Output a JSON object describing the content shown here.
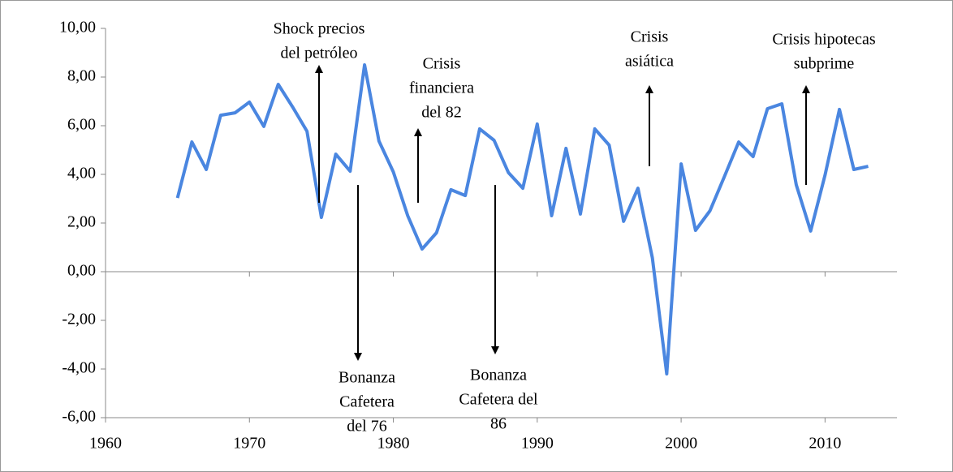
{
  "chart_data": {
    "type": "line",
    "x": [
      1965,
      1966,
      1967,
      1968,
      1969,
      1970,
      1971,
      1972,
      1973,
      1974,
      1975,
      1976,
      1977,
      1978,
      1979,
      1980,
      1981,
      1982,
      1983,
      1984,
      1985,
      1986,
      1987,
      1988,
      1989,
      1990,
      1991,
      1992,
      1993,
      1994,
      1995,
      1996,
      1997,
      1998,
      1999,
      2000,
      2001,
      2002,
      2003,
      2004,
      2005,
      2006,
      2007,
      2008,
      2009,
      2010,
      2011,
      2012,
      2013
    ],
    "values": [
      3.03,
      5.33,
      4.2,
      6.43,
      6.53,
      6.97,
      5.97,
      7.7,
      6.77,
      5.77,
      2.23,
      4.83,
      4.13,
      8.5,
      5.37,
      4.1,
      2.3,
      0.93,
      1.6,
      3.37,
      3.13,
      5.87,
      5.4,
      4.07,
      3.43,
      6.07,
      2.3,
      5.07,
      2.37,
      5.87,
      5.2,
      2.07,
      3.43,
      0.57,
      -4.2,
      4.43,
      1.7,
      2.5,
      3.9,
      5.33,
      4.73,
      6.7,
      6.9,
      3.57,
      1.67,
      3.97,
      6.67,
      4.2,
      4.33
    ],
    "color": "#4a86e0",
    "xlim": [
      1960,
      2015
    ],
    "xticks": [
      1960,
      1970,
      1980,
      1990,
      2000,
      2010
    ],
    "ylim": [
      -6,
      10
    ],
    "yticks": [
      {
        "value": -6,
        "label": "-6,00"
      },
      {
        "value": -4,
        "label": "-4,00"
      },
      {
        "value": -2,
        "label": "-2,00"
      },
      {
        "value": 0,
        "label": "0,00"
      },
      {
        "value": 2,
        "label": "2,00"
      },
      {
        "value": 4,
        "label": "4,00"
      },
      {
        "value": 6,
        "label": "6,00"
      },
      {
        "value": 8,
        "label": "8,00"
      },
      {
        "value": 10,
        "label": "10,00"
      }
    ],
    "annotations": [
      {
        "lines": [
          "Shock precios",
          "del petróleo"
        ]
      },
      {
        "lines": [
          "Crisis",
          "financiera",
          "del 82"
        ]
      },
      {
        "lines": [
          "Crisis",
          "asiática"
        ]
      },
      {
        "lines": [
          "Crisis hipotecas",
          "subprime"
        ]
      },
      {
        "lines": [
          "Bonanza",
          "Cafetera",
          "del 76"
        ]
      },
      {
        "lines": [
          "Bonanza",
          "Cafetera del",
          "86"
        ]
      }
    ]
  }
}
